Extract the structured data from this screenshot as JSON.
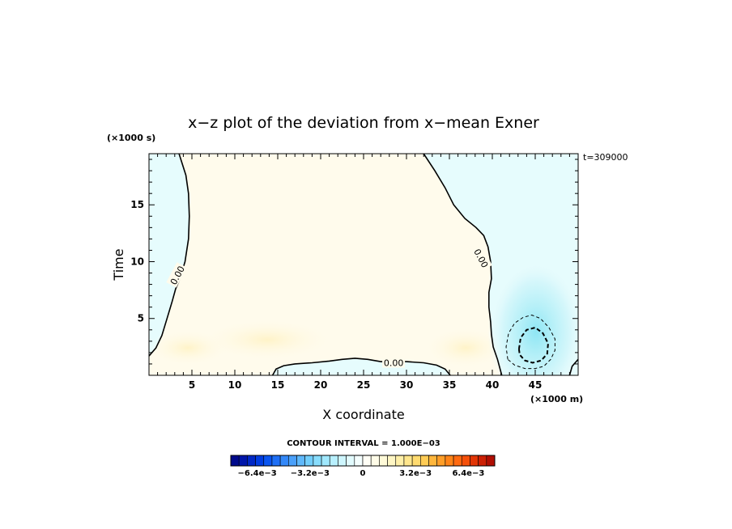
{
  "chart_data": {
    "type": "heatmap",
    "title": "x−z plot of the deviation from x−mean Exner",
    "xlabel": "X coordinate",
    "ylabel": "Time",
    "x_unit_label": "(×1000 m)",
    "y_unit_label": "(×1000 s)",
    "time_label": "t=309000",
    "xlim": [
      0,
      50
    ],
    "ylim": [
      0,
      19.5
    ],
    "x_ticks": [
      5,
      10,
      15,
      20,
      25,
      30,
      35,
      40,
      45
    ],
    "y_ticks": [
      5,
      10,
      15
    ],
    "contour_interval_label": "CONTOUR INTERVAL = 1.000E−03",
    "contour_labels": [
      {
        "text": "0.00",
        "x": 3.3,
        "y": 8.8
      },
      {
        "text": "0.00",
        "x": 38.7,
        "y": 10.3
      },
      {
        "text": "0.00",
        "x": 28.5,
        "y": 1.1
      }
    ],
    "zero_contours": [
      {
        "name": "left",
        "points": [
          [
            0,
            1.7
          ],
          [
            0.8,
            2.4
          ],
          [
            1.5,
            3.5
          ],
          [
            2.1,
            5
          ],
          [
            2.7,
            6.5
          ],
          [
            3.1,
            7.6
          ],
          [
            3.6,
            8.5
          ],
          [
            4.2,
            10
          ],
          [
            4.6,
            12
          ],
          [
            4.7,
            14
          ],
          [
            4.6,
            16
          ],
          [
            4.3,
            17.6
          ],
          [
            3.5,
            19.5
          ]
        ]
      },
      {
        "name": "middle",
        "points": [
          [
            32,
            19.5
          ],
          [
            33.3,
            18
          ],
          [
            34.5,
            16.5
          ],
          [
            35.5,
            15
          ],
          [
            36.8,
            13.8
          ],
          [
            38.1,
            13
          ],
          [
            39,
            12.3
          ],
          [
            39.5,
            11.3
          ],
          [
            39.8,
            10
          ],
          [
            39.9,
            8.5
          ],
          [
            39.6,
            7.3
          ],
          [
            39.6,
            6
          ],
          [
            39.8,
            4.7
          ],
          [
            39.9,
            3.6
          ],
          [
            40.1,
            2.5
          ],
          [
            40.6,
            1.4
          ],
          [
            41.1,
            0
          ]
        ]
      },
      {
        "name": "bottom",
        "points": [
          [
            14.4,
            0
          ],
          [
            14.8,
            0.55
          ],
          [
            15.7,
            0.85
          ],
          [
            17,
            1
          ],
          [
            19,
            1.1
          ],
          [
            21,
            1.25
          ],
          [
            22.5,
            1.4
          ],
          [
            24,
            1.5
          ],
          [
            25.5,
            1.4
          ],
          [
            27,
            1.2
          ],
          [
            30,
            1.2
          ],
          [
            32,
            1.1
          ],
          [
            33.5,
            0.9
          ],
          [
            34.5,
            0.55
          ],
          [
            35.1,
            0
          ]
        ]
      },
      {
        "name": "right",
        "points": [
          [
            49,
            0
          ],
          [
            49.3,
            0.8
          ],
          [
            50,
            1.4
          ]
        ]
      }
    ],
    "neg_contours": [
      {
        "level": -0.001,
        "points": [
          [
            41.8,
            1.4
          ],
          [
            41.6,
            2.5
          ],
          [
            41.9,
            3.7
          ],
          [
            42.6,
            4.6
          ],
          [
            43.6,
            5.1
          ],
          [
            44.6,
            5.3
          ],
          [
            45.6,
            5
          ],
          [
            46.6,
            4.2
          ],
          [
            47.3,
            3.2
          ],
          [
            47.3,
            2.2
          ],
          [
            46.8,
            1.4
          ],
          [
            46,
            0.8
          ],
          [
            45,
            0.6
          ],
          [
            43.8,
            0.6
          ],
          [
            42.6,
            0.9
          ],
          [
            41.8,
            1.4
          ]
        ]
      },
      {
        "level": -0.002,
        "points": [
          [
            43.1,
            2.3
          ],
          [
            43.3,
            3.3
          ],
          [
            44,
            4
          ],
          [
            45,
            4.2
          ],
          [
            45.9,
            3.7
          ],
          [
            46.5,
            2.8
          ],
          [
            46.4,
            1.9
          ],
          [
            45.7,
            1.3
          ],
          [
            44.7,
            1.1
          ],
          [
            43.8,
            1.3
          ],
          [
            43.2,
            1.8
          ],
          [
            43.1,
            2.3
          ]
        ]
      }
    ],
    "colorbar": {
      "levels": [
        -0.008,
        -0.0075,
        -0.007,
        -0.0065,
        -0.006,
        -0.0055,
        -0.005,
        -0.0045,
        -0.004,
        -0.0035,
        -0.003,
        -0.0025,
        -0.002,
        -0.0015,
        -0.001,
        -0.0005,
        0,
        0.0005,
        0.001,
        0.0015,
        0.002,
        0.0025,
        0.003,
        0.0035,
        0.004,
        0.0045,
        0.005,
        0.0055,
        0.006,
        0.0065,
        0.007,
        0.0075,
        0.008
      ],
      "colors": [
        "#000a8c",
        "#0016aa",
        "#0028c6",
        "#003ce0",
        "#0a55f0",
        "#1e6ff5",
        "#3388f8",
        "#4aa0fa",
        "#5fb8fb",
        "#72cefc",
        "#88ddfd",
        "#a0e8fd",
        "#b8f0fe",
        "#cef6fe",
        "#e2fbfe",
        "#f4fefe",
        "#fffef6",
        "#fffce8",
        "#fffad8",
        "#fff6c4",
        "#ffefa8",
        "#ffe68c",
        "#ffdb70",
        "#ffcc55",
        "#ffb63c",
        "#ff9e28",
        "#ff8418",
        "#ff6a10",
        "#f5500a",
        "#e23606",
        "#cc2004",
        "#b00e02"
      ],
      "tick_labels": [
        "−6.4e−3",
        "−3.2e−3",
        "0",
        "3.2e−3",
        "6.4e−3"
      ],
      "tick_values": [
        -0.0064,
        -0.0032,
        0,
        0.0032,
        0.0064
      ]
    }
  }
}
